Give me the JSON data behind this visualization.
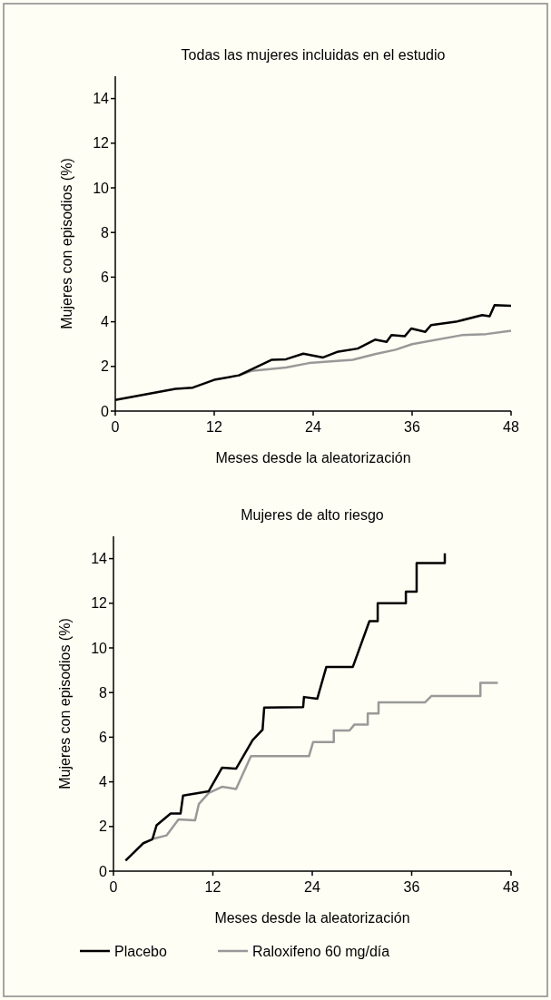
{
  "chart_data": [
    {
      "type": "line",
      "title": "Todas las mujeres incluidas en el estudio",
      "xlabel": "Meses desde la aleatorización",
      "ylabel": "Mujeres con episodios (%)",
      "xlim": [
        0,
        48
      ],
      "xticks": [
        0,
        12,
        24,
        36,
        48
      ],
      "ylim": [
        0,
        15
      ],
      "yticks": [
        0,
        2,
        4,
        6,
        8,
        10,
        12,
        14
      ],
      "legend": false,
      "grid": false,
      "series": [
        {
          "color": "#999999",
          "x": [
            15,
            16.5,
            20.7,
            23.5,
            28.8,
            31.5,
            34,
            36,
            42,
            45,
            48
          ],
          "values": [
            1.6,
            1.8,
            1.95,
            2.15,
            2.3,
            2.55,
            2.75,
            3.0,
            3.4,
            3.45,
            3.6
          ]
        },
        {
          "color": "#000000",
          "x": [
            0,
            7.3,
            9.4,
            12,
            15,
            19,
            20.7,
            22.8,
            25.2,
            26.9,
            29.4,
            31.5,
            32.9,
            33.5,
            35.1,
            35.9,
            37.6,
            38.3,
            41.3,
            44.5,
            45.4,
            46,
            48
          ],
          "values": [
            0.5,
            1.0,
            1.05,
            1.4,
            1.6,
            2.3,
            2.32,
            2.57,
            2.4,
            2.65,
            2.8,
            3.2,
            3.1,
            3.4,
            3.35,
            3.7,
            3.55,
            3.85,
            4.0,
            4.3,
            4.25,
            4.75,
            4.72
          ]
        }
      ]
    },
    {
      "type": "line",
      "title": "Mujeres de alto riesgo",
      "xlabel": "Meses desde la aleatorización",
      "ylabel": "Mujeres con episodios (%)",
      "xlim": [
        0,
        48
      ],
      "xticks": [
        0,
        12,
        24,
        36,
        48
      ],
      "ylim": [
        0,
        15
      ],
      "yticks": [
        0,
        2,
        4,
        6,
        8,
        10,
        12,
        14
      ],
      "legend": "bottom",
      "grid": false,
      "series": [
        {
          "name": "Raloxifeno 60 mg/día",
          "color": "#999999",
          "x": [
            4.85,
            6.4,
            7.85,
            9.85,
            10.3,
            11.5,
            13.1,
            14.8,
            16.6,
            23.6,
            24.1,
            26.6,
            26.6,
            28.5,
            29.1,
            30.7,
            30.7,
            32.0,
            32.0,
            37.6,
            38.4,
            44.3,
            44.3,
            46.4
          ],
          "values": [
            1.45,
            1.6,
            2.32,
            2.28,
            3.0,
            3.5,
            3.78,
            3.68,
            5.15,
            5.15,
            5.78,
            5.78,
            6.3,
            6.3,
            6.57,
            6.57,
            7.06,
            7.06,
            7.56,
            7.56,
            7.85,
            7.85,
            8.43,
            8.43
          ]
        },
        {
          "name": "Placebo",
          "color": "#000000",
          "x": [
            1.46,
            3.6,
            4.7,
            5.2,
            6.9,
            8.1,
            8.4,
            11.5,
            13.1,
            14.8,
            16.8,
            18.0,
            18.2,
            22.9,
            23.0,
            24.6,
            25.7,
            28.9,
            30.9,
            31.9,
            31.9,
            35.3,
            35.3,
            36.6,
            36.6,
            40.0,
            40.0
          ],
          "values": [
            0.47,
            1.25,
            1.43,
            2.05,
            2.58,
            2.58,
            3.38,
            3.58,
            4.63,
            4.59,
            5.87,
            6.34,
            7.33,
            7.35,
            7.8,
            7.72,
            9.15,
            9.15,
            11.2,
            11.2,
            12.0,
            12.0,
            12.52,
            12.52,
            13.8,
            13.8,
            14.24
          ]
        }
      ]
    }
  ]
}
